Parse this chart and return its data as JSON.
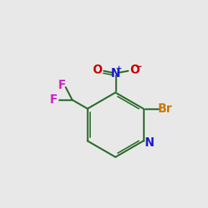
{
  "background_color": "#e8e8e8",
  "bond_color": "#2d6e2d",
  "atom_colors": {
    "N_ring": "#1a1acc",
    "Br": "#cc7700",
    "N_nitro": "#1a1acc",
    "O": "#cc0000",
    "F": "#cc22cc",
    "C": "#000000"
  },
  "figsize": [
    3.0,
    3.0
  ],
  "dpi": 100
}
